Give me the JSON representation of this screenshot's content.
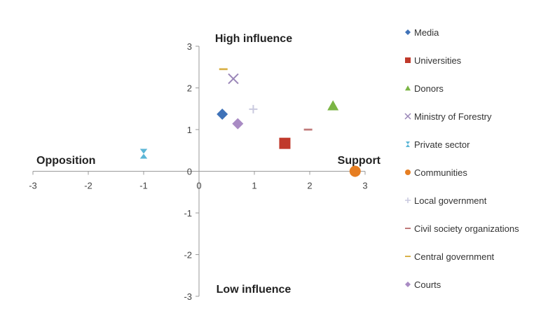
{
  "chart_data": {
    "type": "scatter",
    "xlim": [
      -3,
      3
    ],
    "ylim": [
      -3,
      3
    ],
    "x_ticks": [
      -3,
      -2,
      -1,
      0,
      1,
      2,
      3
    ],
    "y_ticks": [
      -3,
      -2,
      -1,
      0,
      1,
      2,
      3
    ],
    "grid": false,
    "legend_position": "right",
    "quadrant_labels": {
      "top": "High influence",
      "bottom": "Low influence",
      "left": "Opposition",
      "right": "Support"
    },
    "series": [
      {
        "name": "Media",
        "x": 0.42,
        "y": 1.37,
        "marker": "diamond",
        "color": "#3f72b8"
      },
      {
        "name": "Universities",
        "x": 1.55,
        "y": 0.67,
        "marker": "square",
        "color": "#c0392b"
      },
      {
        "name": "Donors",
        "x": 2.42,
        "y": 1.57,
        "marker": "triangle",
        "color": "#7bb544"
      },
      {
        "name": "Ministry of Forestry",
        "x": 0.62,
        "y": 2.22,
        "marker": "x",
        "color": "#9a86b8"
      },
      {
        "name": "Private sector",
        "x": -1.0,
        "y": 0.42,
        "marker": "hourglass",
        "color": "#5bb6d6"
      },
      {
        "name": "Communities",
        "x": 2.82,
        "y": 0.0,
        "marker": "circle",
        "color": "#e67e22"
      },
      {
        "name": "Local government",
        "x": 0.98,
        "y": 1.49,
        "marker": "plus",
        "color": "#c9c9df"
      },
      {
        "name": "Civil society organizations",
        "x": 1.97,
        "y": 1.0,
        "marker": "dash",
        "color": "#c07a7a"
      },
      {
        "name": "Central government",
        "x": 0.44,
        "y": 2.45,
        "marker": "dash",
        "color": "#d9b24a"
      },
      {
        "name": "Courts",
        "x": 0.7,
        "y": 1.14,
        "marker": "diamond",
        "color": "#a98bc4"
      }
    ]
  }
}
